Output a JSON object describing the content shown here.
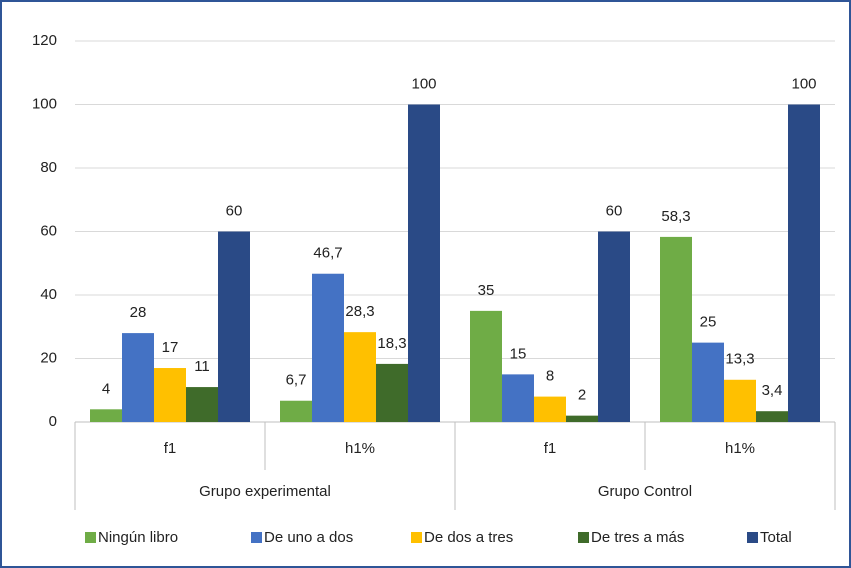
{
  "chart_data": {
    "type": "bar",
    "groups": [
      "Grupo experimental",
      "Grupo Control"
    ],
    "categories": [
      "f1",
      "h1%",
      "f1",
      "h1%"
    ],
    "series": [
      {
        "name": "Ningún libro",
        "color": "#6fac46",
        "values": [
          4,
          6.7,
          35,
          58.3
        ],
        "value_labels": [
          "4",
          "6,7",
          "35",
          "58,3"
        ]
      },
      {
        "name": "De uno a dos",
        "color": "#4472c4",
        "values": [
          28,
          46.7,
          15,
          25
        ],
        "value_labels": [
          "28",
          "46,7",
          "15",
          "25"
        ]
      },
      {
        "name": "De dos a tres",
        "color": "#ffc000",
        "values": [
          17,
          28.3,
          8,
          13.3
        ],
        "value_labels": [
          "17",
          "28,3",
          "8",
          "13,3"
        ]
      },
      {
        "name": "De tres a más",
        "color": "#3f6b2a",
        "values": [
          11,
          18.3,
          2,
          3.4
        ],
        "value_labels": [
          "11",
          "18,3",
          "2",
          "3,4"
        ]
      },
      {
        "name": "Total",
        "color": "#2a4a86",
        "values": [
          60,
          100,
          60,
          100
        ],
        "value_labels": [
          "60",
          "100",
          "60",
          "100"
        ]
      }
    ],
    "ylim": [
      0,
      120
    ],
    "yticks": [
      0,
      20,
      40,
      60,
      80,
      100,
      120
    ],
    "grid": true,
    "legend": "bottom"
  }
}
